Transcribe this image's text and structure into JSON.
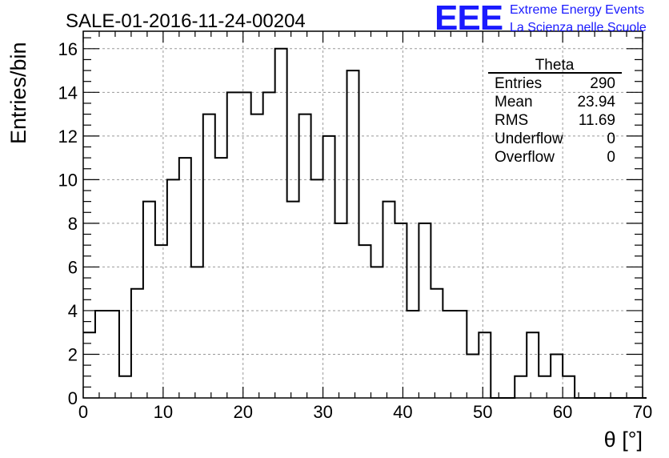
{
  "logo": {
    "mark": "EEE",
    "line1": "Extreme Energy Events",
    "line2": "La Scienza nelle Scuole",
    "color": "#1a1aff"
  },
  "chart_data": {
    "type": "bar",
    "title": "SALE-01-2016-11-24-00204",
    "xlabel": "θ [°]",
    "ylabel": "Entries/bin",
    "xlim": [
      0,
      70
    ],
    "ylim": [
      0,
      16.8
    ],
    "xticks": [
      "0",
      "10",
      "20",
      "30",
      "40",
      "50",
      "60",
      "70"
    ],
    "yticks": [
      "0",
      "2",
      "4",
      "6",
      "8",
      "10",
      "12",
      "14",
      "16"
    ],
    "grid": true,
    "bin_width": 1.5,
    "bin_edges_start": 0,
    "values": [
      3,
      4,
      4,
      1,
      5,
      9,
      7,
      10,
      11,
      6,
      13,
      11,
      14,
      14,
      13,
      14,
      16,
      9,
      13,
      10,
      12,
      8,
      15,
      7,
      6,
      9,
      8,
      4,
      8,
      5,
      4,
      4,
      2,
      3,
      0,
      0,
      1,
      3,
      1,
      2,
      1,
      0,
      0,
      0,
      0,
      0,
      0
    ],
    "line_color": "#000000",
    "stats": {
      "title": "Theta",
      "rows": [
        {
          "label": "Entries",
          "value": "290"
        },
        {
          "label": "Mean",
          "value": "23.94"
        },
        {
          "label": "RMS",
          "value": "11.69"
        },
        {
          "label": "Underflow",
          "value": "0"
        },
        {
          "label": "Overflow",
          "value": "0"
        }
      ]
    }
  }
}
